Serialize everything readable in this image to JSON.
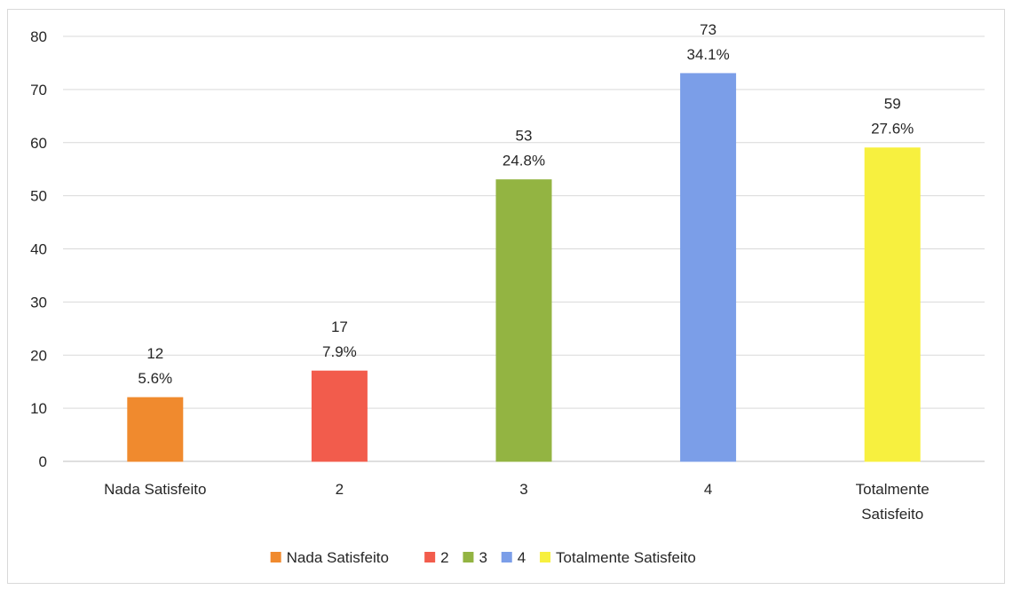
{
  "chart_data": {
    "type": "bar",
    "categories": [
      "Nada Satisfeito",
      "2",
      "3",
      "4",
      "Totalmente Satisfeito"
    ],
    "category_lines": [
      [
        "Nada Satisfeito"
      ],
      [
        "2"
      ],
      [
        "3"
      ],
      [
        "4"
      ],
      [
        "Totalmente",
        "Satisfeito"
      ]
    ],
    "values": [
      12,
      17,
      53,
      73,
      59
    ],
    "percent_labels": [
      "5.6%",
      "7.9%",
      "24.8%",
      "34.1%",
      "27.6%"
    ],
    "colors": [
      "#f08a2e",
      "#f25c4c",
      "#93b442",
      "#7b9ee8",
      "#f7f03f"
    ],
    "ylim": [
      0,
      80
    ],
    "yticks": [
      0,
      10,
      20,
      30,
      40,
      50,
      60,
      70,
      80
    ],
    "grid": true,
    "legend_position": "bottom",
    "legend": [
      "Nada Satisfeito",
      "2",
      "3",
      "4",
      "Totalmente Satisfeito"
    ],
    "title": "",
    "xlabel": "",
    "ylabel": ""
  }
}
